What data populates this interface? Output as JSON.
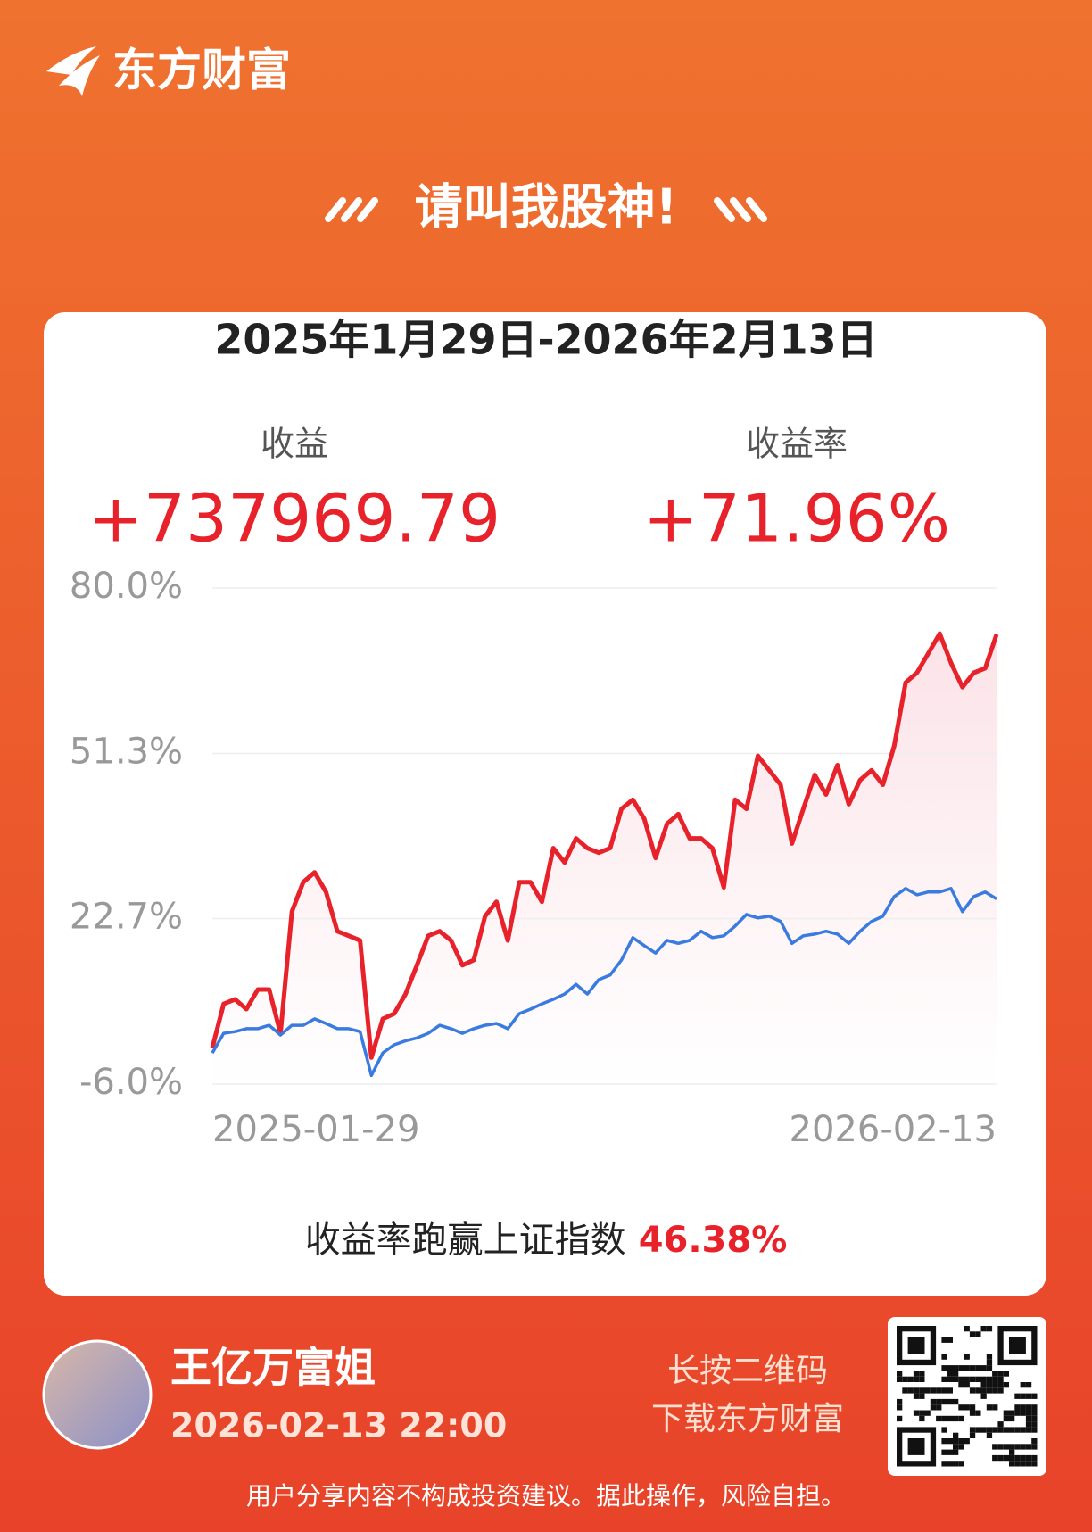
{
  "header": {
    "brand": "东方财富",
    "slogan": "请叫我股神!"
  },
  "card": {
    "date_range": "2025年1月29日-2026年2月13日",
    "profit_label": "收益",
    "profit_value": "+737969.79",
    "rate_label": "收益率",
    "rate_value": "+71.96%",
    "compare_text": "收益率跑赢上证指数",
    "compare_value": "46.38%"
  },
  "chart_data": {
    "type": "line",
    "categories": [
      "2025-01-29",
      null,
      null,
      null,
      null,
      null,
      null,
      null,
      null,
      null,
      null,
      null,
      null,
      null,
      null,
      null,
      null,
      null,
      null,
      null,
      null,
      null,
      null,
      null,
      null,
      null,
      null,
      null,
      null,
      null,
      null,
      null,
      null,
      null,
      null,
      null,
      null,
      null,
      null,
      null,
      null,
      null,
      null,
      null,
      null,
      null,
      null,
      null,
      null,
      null,
      null,
      null,
      null,
      null,
      null,
      null,
      null,
      null,
      null,
      null,
      null,
      null,
      null,
      null,
      null,
      null,
      null,
      null,
      null,
      "2026-02-13"
    ],
    "series": [
      {
        "color": "#e8222a",
        "values": [
          0.3,
          7.9,
          8.7,
          7.0,
          10.4,
          10.4,
          2.8,
          23.9,
          29.0,
          30.7,
          27.3,
          20.5,
          19.7,
          18.9,
          -1.4,
          5.3,
          6.2,
          9.6,
          14.6,
          19.7,
          20.5,
          18.9,
          14.6,
          15.5,
          23.1,
          25.6,
          18.9,
          29.0,
          29.0,
          25.6,
          34.9,
          32.4,
          36.6,
          34.9,
          34.1,
          34.9,
          41.7,
          43.3,
          40.0,
          33.2,
          39.1,
          40.8,
          36.6,
          36.6,
          34.9,
          28.1,
          43.3,
          41.7,
          50.9,
          48.4,
          45.9,
          35.7,
          41.7,
          47.6,
          44.2,
          49.3,
          42.5,
          46.7,
          48.4,
          45.9,
          52.6,
          63.6,
          65.3,
          68.7,
          72.1,
          67.0,
          62.8,
          65.3,
          66.1,
          71.96
        ]
      },
      {
        "color": "#3a7be0",
        "values": [
          -0.6,
          2.8,
          3.1,
          3.6,
          3.6,
          4.2,
          2.5,
          4.2,
          4.2,
          5.3,
          4.5,
          3.6,
          3.6,
          3.1,
          -4.5,
          -0.6,
          0.8,
          1.5,
          2.0,
          2.8,
          4.2,
          3.6,
          2.8,
          3.6,
          4.2,
          4.5,
          3.6,
          6.2,
          7.0,
          7.9,
          8.7,
          9.6,
          11.3,
          9.6,
          12.1,
          12.9,
          15.5,
          19.4,
          18.0,
          16.7,
          18.9,
          18.4,
          18.9,
          20.5,
          19.4,
          19.7,
          21.4,
          23.4,
          22.8,
          23.1,
          22.2,
          18.4,
          19.7,
          20.0,
          20.5,
          20.0,
          18.4,
          20.5,
          22.2,
          23.1,
          26.5,
          27.9,
          26.8,
          27.3,
          27.3,
          27.9,
          23.9,
          26.5,
          27.3,
          26.1
        ]
      }
    ],
    "ylim": [
      -6,
      80
    ],
    "yticks": [
      {
        "value": 80,
        "label": "80.0%"
      },
      {
        "value": 51.3,
        "label": "51.3%"
      },
      {
        "value": 22.7,
        "label": "22.7%"
      },
      {
        "value": -6,
        "label": "-6.0%"
      }
    ],
    "grid": true
  },
  "footer": {
    "user_name": "王亿万富姐",
    "timestamp": "2026-02-13 22:00",
    "qr_line1": "长按二维码",
    "qr_line2": "下载东方财富",
    "disclaimer": "用户分享内容不构成投资建议。据此操作，风险自担。"
  }
}
